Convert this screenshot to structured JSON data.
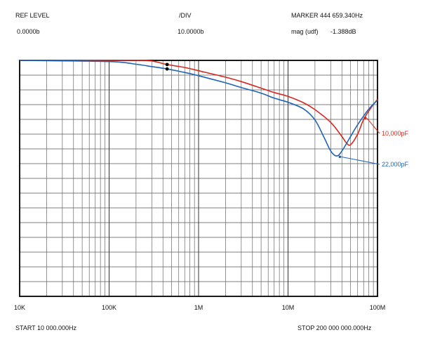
{
  "header": {
    "ref_level_label": "REF LEVEL",
    "ref_level_value": "0.0000b",
    "div_label": "/DIV",
    "div_value": "10.0000b",
    "marker_label": "MARKER",
    "marker_freq": "444 659.340Hz",
    "marker_mode": "mag (udf)",
    "marker_value": "-1.388dB"
  },
  "footer": {
    "start": "START 10 000.000Hz",
    "stop": "STOP 200 000 000.000Hz"
  },
  "chart_data": {
    "type": "line",
    "x_scale": "log",
    "xlim": [
      10000,
      100000000
    ],
    "ylim": [
      -80,
      0
    ],
    "y_div": 5,
    "grid": true,
    "x_tick_labels": [
      "10K",
      "100K",
      "1M",
      "10M",
      "100M"
    ],
    "x_ticks": [
      10000,
      100000,
      1000000,
      10000000,
      100000000
    ],
    "series": [
      {
        "name": "10,000pF",
        "color": "#d8281e",
        "x": [
          10000,
          100000,
          200000,
          300000,
          444659,
          700000,
          1000000,
          2000000,
          3000000,
          5000000,
          7000000,
          10000000,
          15000000,
          20000000,
          30000000,
          40000000,
          45000000,
          50000000,
          60000000,
          70000000,
          85000000,
          100000000
        ],
        "y": [
          0,
          0,
          0,
          -0.2,
          -1.4,
          -2.4,
          -3.5,
          -5.7,
          -7.2,
          -9.4,
          -10.9,
          -12.2,
          -14.4,
          -16.7,
          -21,
          -25.8,
          -28,
          -28.6,
          -25,
          -20,
          -16,
          -13.2
        ]
      },
      {
        "name": "22,000pF",
        "color": "#1f64b8",
        "x": [
          10000,
          100000,
          200000,
          300000,
          444659,
          700000,
          1000000,
          2000000,
          3000000,
          5000000,
          7000000,
          10000000,
          15000000,
          20000000,
          25000000,
          30000000,
          35000000,
          40000000,
          50000000,
          60000000,
          80000000,
          100000000
        ],
        "y": [
          0,
          -0.4,
          -1.3,
          -2.1,
          -2.9,
          -4.1,
          -5.2,
          -7.6,
          -9.2,
          -11.1,
          -12.8,
          -14.2,
          -16.5,
          -20.2,
          -25.8,
          -30.7,
          -32.4,
          -30.7,
          -25.8,
          -21.8,
          -16.5,
          -13.5
        ]
      }
    ],
    "markers": [
      {
        "x": 444659,
        "y": -1.4
      },
      {
        "x": 444659,
        "y": -2.9
      }
    ],
    "annotations": [
      {
        "text": "10,000pF",
        "color": "#d8281e",
        "target_x": 73000000,
        "target_y": -19.5
      },
      {
        "text": "22,000pF",
        "color": "#1f64b8",
        "target_x": 38000000,
        "target_y": -32.7
      }
    ]
  }
}
